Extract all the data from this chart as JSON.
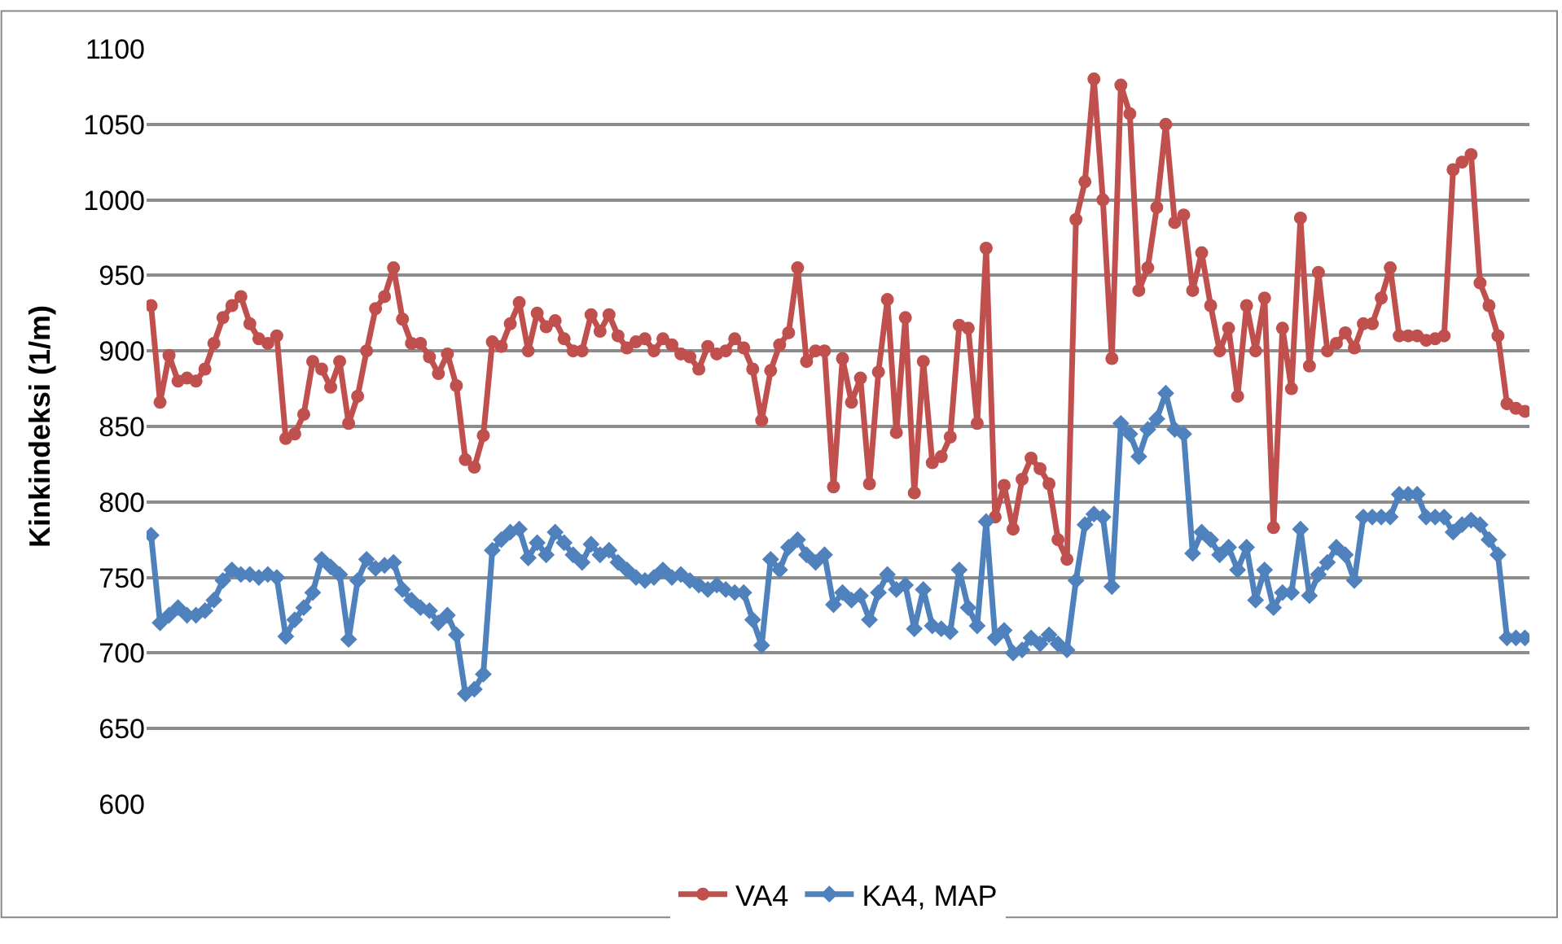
{
  "chart_data": {
    "type": "line",
    "ylabel": "Kinkindeksi (1/m)",
    "categories": [
      null,
      null,
      null,
      null,
      null,
      null,
      null,
      null,
      null,
      null,
      null,
      null,
      null,
      null,
      null,
      null,
      null,
      null,
      null,
      null,
      null,
      null,
      null,
      null,
      null,
      null,
      null,
      null,
      null,
      null,
      null,
      null,
      null,
      null,
      null,
      null,
      null,
      null,
      null,
      null,
      null,
      null,
      null,
      null,
      null,
      null,
      null,
      null,
      null,
      null,
      null,
      null,
      null,
      null,
      null,
      null,
      null,
      null,
      null,
      null,
      null,
      null,
      null,
      null,
      null,
      null,
      null,
      null,
      null,
      null,
      null,
      null,
      null,
      null,
      null,
      null,
      null,
      null,
      null,
      null,
      null,
      null,
      null,
      null,
      null,
      null,
      null,
      null,
      null,
      null,
      null,
      null,
      null,
      null,
      null,
      null,
      null,
      null,
      null,
      null,
      null,
      null,
      null,
      null,
      null,
      null,
      null,
      null,
      null,
      null,
      null,
      null,
      null,
      null,
      null,
      null,
      null,
      null,
      null,
      null,
      null,
      null,
      null,
      null,
      null,
      null,
      null,
      null,
      null,
      null,
      null,
      null,
      null,
      null,
      null,
      null,
      null,
      null,
      null,
      null,
      null,
      null,
      null,
      null,
      null,
      null,
      null,
      null,
      null,
      null,
      null,
      null,
      null,
      null
    ],
    "series": [
      {
        "name": "VA4",
        "color": "#c0504d",
        "marker": "circle",
        "values": [
          930,
          866,
          897,
          880,
          882,
          880,
          888,
          905,
          922,
          930,
          936,
          918,
          908,
          905,
          910,
          842,
          845,
          858,
          893,
          888,
          876,
          893,
          852,
          870,
          900,
          928,
          936,
          955,
          921,
          905,
          905,
          896,
          885,
          898,
          877,
          828,
          823,
          844,
          906,
          903,
          918,
          932,
          900,
          925,
          916,
          920,
          908,
          900,
          900,
          924,
          913,
          924,
          910,
          902,
          906,
          908,
          900,
          908,
          904,
          898,
          896,
          888,
          903,
          898,
          900,
          908,
          902,
          888,
          854,
          887,
          904,
          912,
          955,
          893,
          900,
          900,
          810,
          895,
          866,
          882,
          812,
          886,
          934,
          846,
          922,
          806,
          893,
          826,
          830,
          843,
          917,
          915,
          852,
          968,
          790,
          811,
          782,
          815,
          829,
          822,
          812,
          775,
          762,
          987,
          1012,
          1080,
          1000,
          895,
          1076,
          1057,
          940,
          955,
          995,
          1050,
          985,
          990,
          940,
          965,
          930,
          900,
          915,
          870,
          930,
          900,
          935,
          783,
          915,
          875,
          988,
          890,
          952,
          900,
          905,
          912,
          902,
          918,
          918,
          935,
          955,
          910,
          910,
          910,
          907,
          908,
          910,
          1020,
          1025,
          1030,
          945,
          930,
          910,
          865,
          862,
          860
        ]
      },
      {
        "name": "KA4, MAP",
        "color": "#4f81bd",
        "marker": "diamond",
        "values": [
          778,
          720,
          725,
          730,
          725,
          725,
          728,
          735,
          748,
          755,
          752,
          752,
          750,
          752,
          750,
          711,
          722,
          730,
          740,
          762,
          757,
          752,
          709,
          748,
          762,
          756,
          758,
          760,
          742,
          735,
          730,
          728,
          720,
          725,
          712,
          673,
          676,
          686,
          768,
          775,
          780,
          782,
          763,
          773,
          765,
          780,
          773,
          765,
          760,
          772,
          765,
          768,
          760,
          755,
          750,
          748,
          750,
          755,
          750,
          752,
          748,
          745,
          742,
          745,
          742,
          740,
          740,
          722,
          705,
          762,
          755,
          770,
          775,
          765,
          760,
          765,
          732,
          740,
          735,
          738,
          722,
          740,
          752,
          742,
          745,
          716,
          742,
          718,
          716,
          714,
          755,
          730,
          718,
          787,
          710,
          715,
          700,
          702,
          710,
          706,
          712,
          706,
          702,
          748,
          785,
          792,
          790,
          744,
          852,
          845,
          830,
          848,
          855,
          872,
          848,
          845,
          766,
          780,
          775,
          765,
          770,
          755,
          770,
          735,
          755,
          730,
          740,
          740,
          782,
          738,
          752,
          760,
          770,
          765,
          748,
          790,
          790,
          790,
          790,
          805,
          805,
          805,
          790,
          790,
          790,
          780,
          785,
          788,
          785,
          775,
          765,
          710,
          710,
          710
        ]
      }
    ],
    "ylim": [
      600,
      1100
    ],
    "yticks": [
      600,
      650,
      700,
      750,
      800,
      850,
      900,
      950,
      1000,
      1050,
      1100
    ],
    "grid": "y",
    "legend": "bottom",
    "tick_labels": "y"
  }
}
